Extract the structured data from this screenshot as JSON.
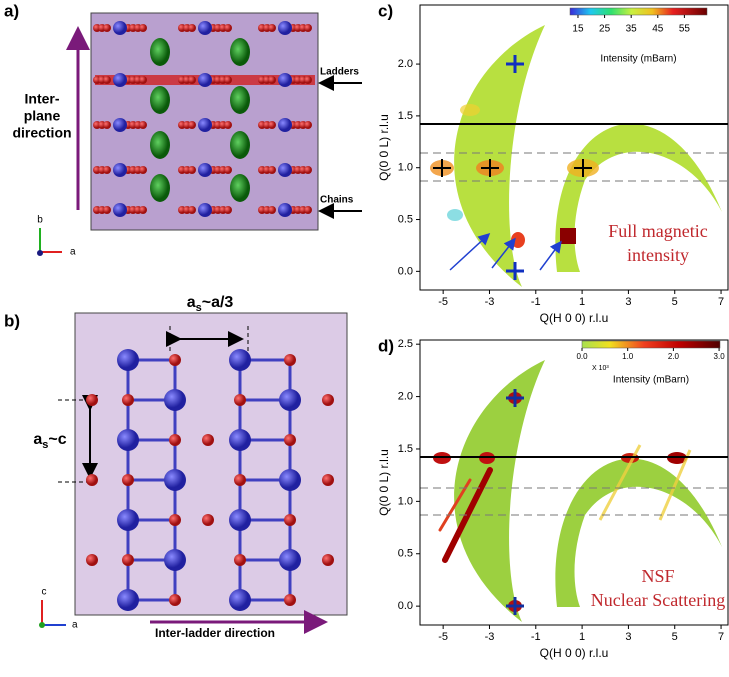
{
  "panel_a": {
    "label": "a)",
    "direction_lines": [
      "Inter-",
      "plane",
      "direction"
    ],
    "ladders": "Ladders",
    "chains": "Chains",
    "axis_vertical": "b",
    "axis_horizontal": "a"
  },
  "panel_b": {
    "label": "b)",
    "spacing_horizontal": {
      "symbol": "a",
      "subscript": "s",
      "rest": "~a/3"
    },
    "spacing_vertical": {
      "symbol": "a",
      "subscript": "s",
      "rest": "~c"
    },
    "direction": "Inter-ladder direction",
    "axis_vertical": "c",
    "axis_horizontal": "a"
  },
  "panel_c": {
    "label": "c)",
    "x_label": "Q(H 0 0) r.l.u",
    "y_label": "Q(0 0 L) r.l.u",
    "xlim": [
      -6,
      7.3
    ],
    "xticks": [
      -5,
      -3,
      -1,
      1,
      3,
      5,
      7
    ],
    "ylim": [
      -0.18,
      2.57
    ],
    "yticks": [
      {
        "value": 0,
        "label": "0.0"
      },
      {
        "value": 0.5,
        "label": "0.5"
      },
      {
        "value": 1,
        "label": "1.0"
      },
      {
        "value": 1.5,
        "label": "1.5"
      },
      {
        "value": 2,
        "label": "2.0"
      }
    ],
    "colorbar": {
      "label": "Intensity (mBarn)",
      "clim": [
        12,
        63.5
      ],
      "ticks": [
        15,
        25,
        35,
        45,
        55
      ]
    },
    "annotation_lines": [
      "Full magnetic",
      "intensity"
    ]
  },
  "panel_d": {
    "label": "d)",
    "x_label": "Q(H 0 0) r.l.u",
    "y_label": "Q(0 0 L) r.l.u",
    "xlim": [
      -6,
      7.3
    ],
    "xticks": [
      -5,
      -3,
      -1,
      1,
      3,
      5,
      7
    ],
    "ylim": [
      -0.18,
      2.54
    ],
    "yticks": [
      {
        "value": 0,
        "label": "0.0"
      },
      {
        "value": 0.5,
        "label": "0.5"
      },
      {
        "value": 1,
        "label": "1.0"
      },
      {
        "value": 1.5,
        "label": "1.5"
      },
      {
        "value": 2,
        "label": "2.0"
      },
      {
        "value": 2.5,
        "label": "2.5"
      }
    ],
    "colorbar": {
      "label": "Intensity (mBarn)",
      "multiplier": "X 10³",
      "clim": [
        0,
        3.02
      ],
      "ticks": [
        {
          "value": 0,
          "label": "0.0"
        },
        {
          "value": 1,
          "label": "1.0"
        },
        {
          "value": 2,
          "label": "2.0"
        },
        {
          "value": 3,
          "label": "3.0"
        }
      ]
    },
    "annotation_lines": [
      "NSF",
      "Nuclear Scattering"
    ]
  }
}
